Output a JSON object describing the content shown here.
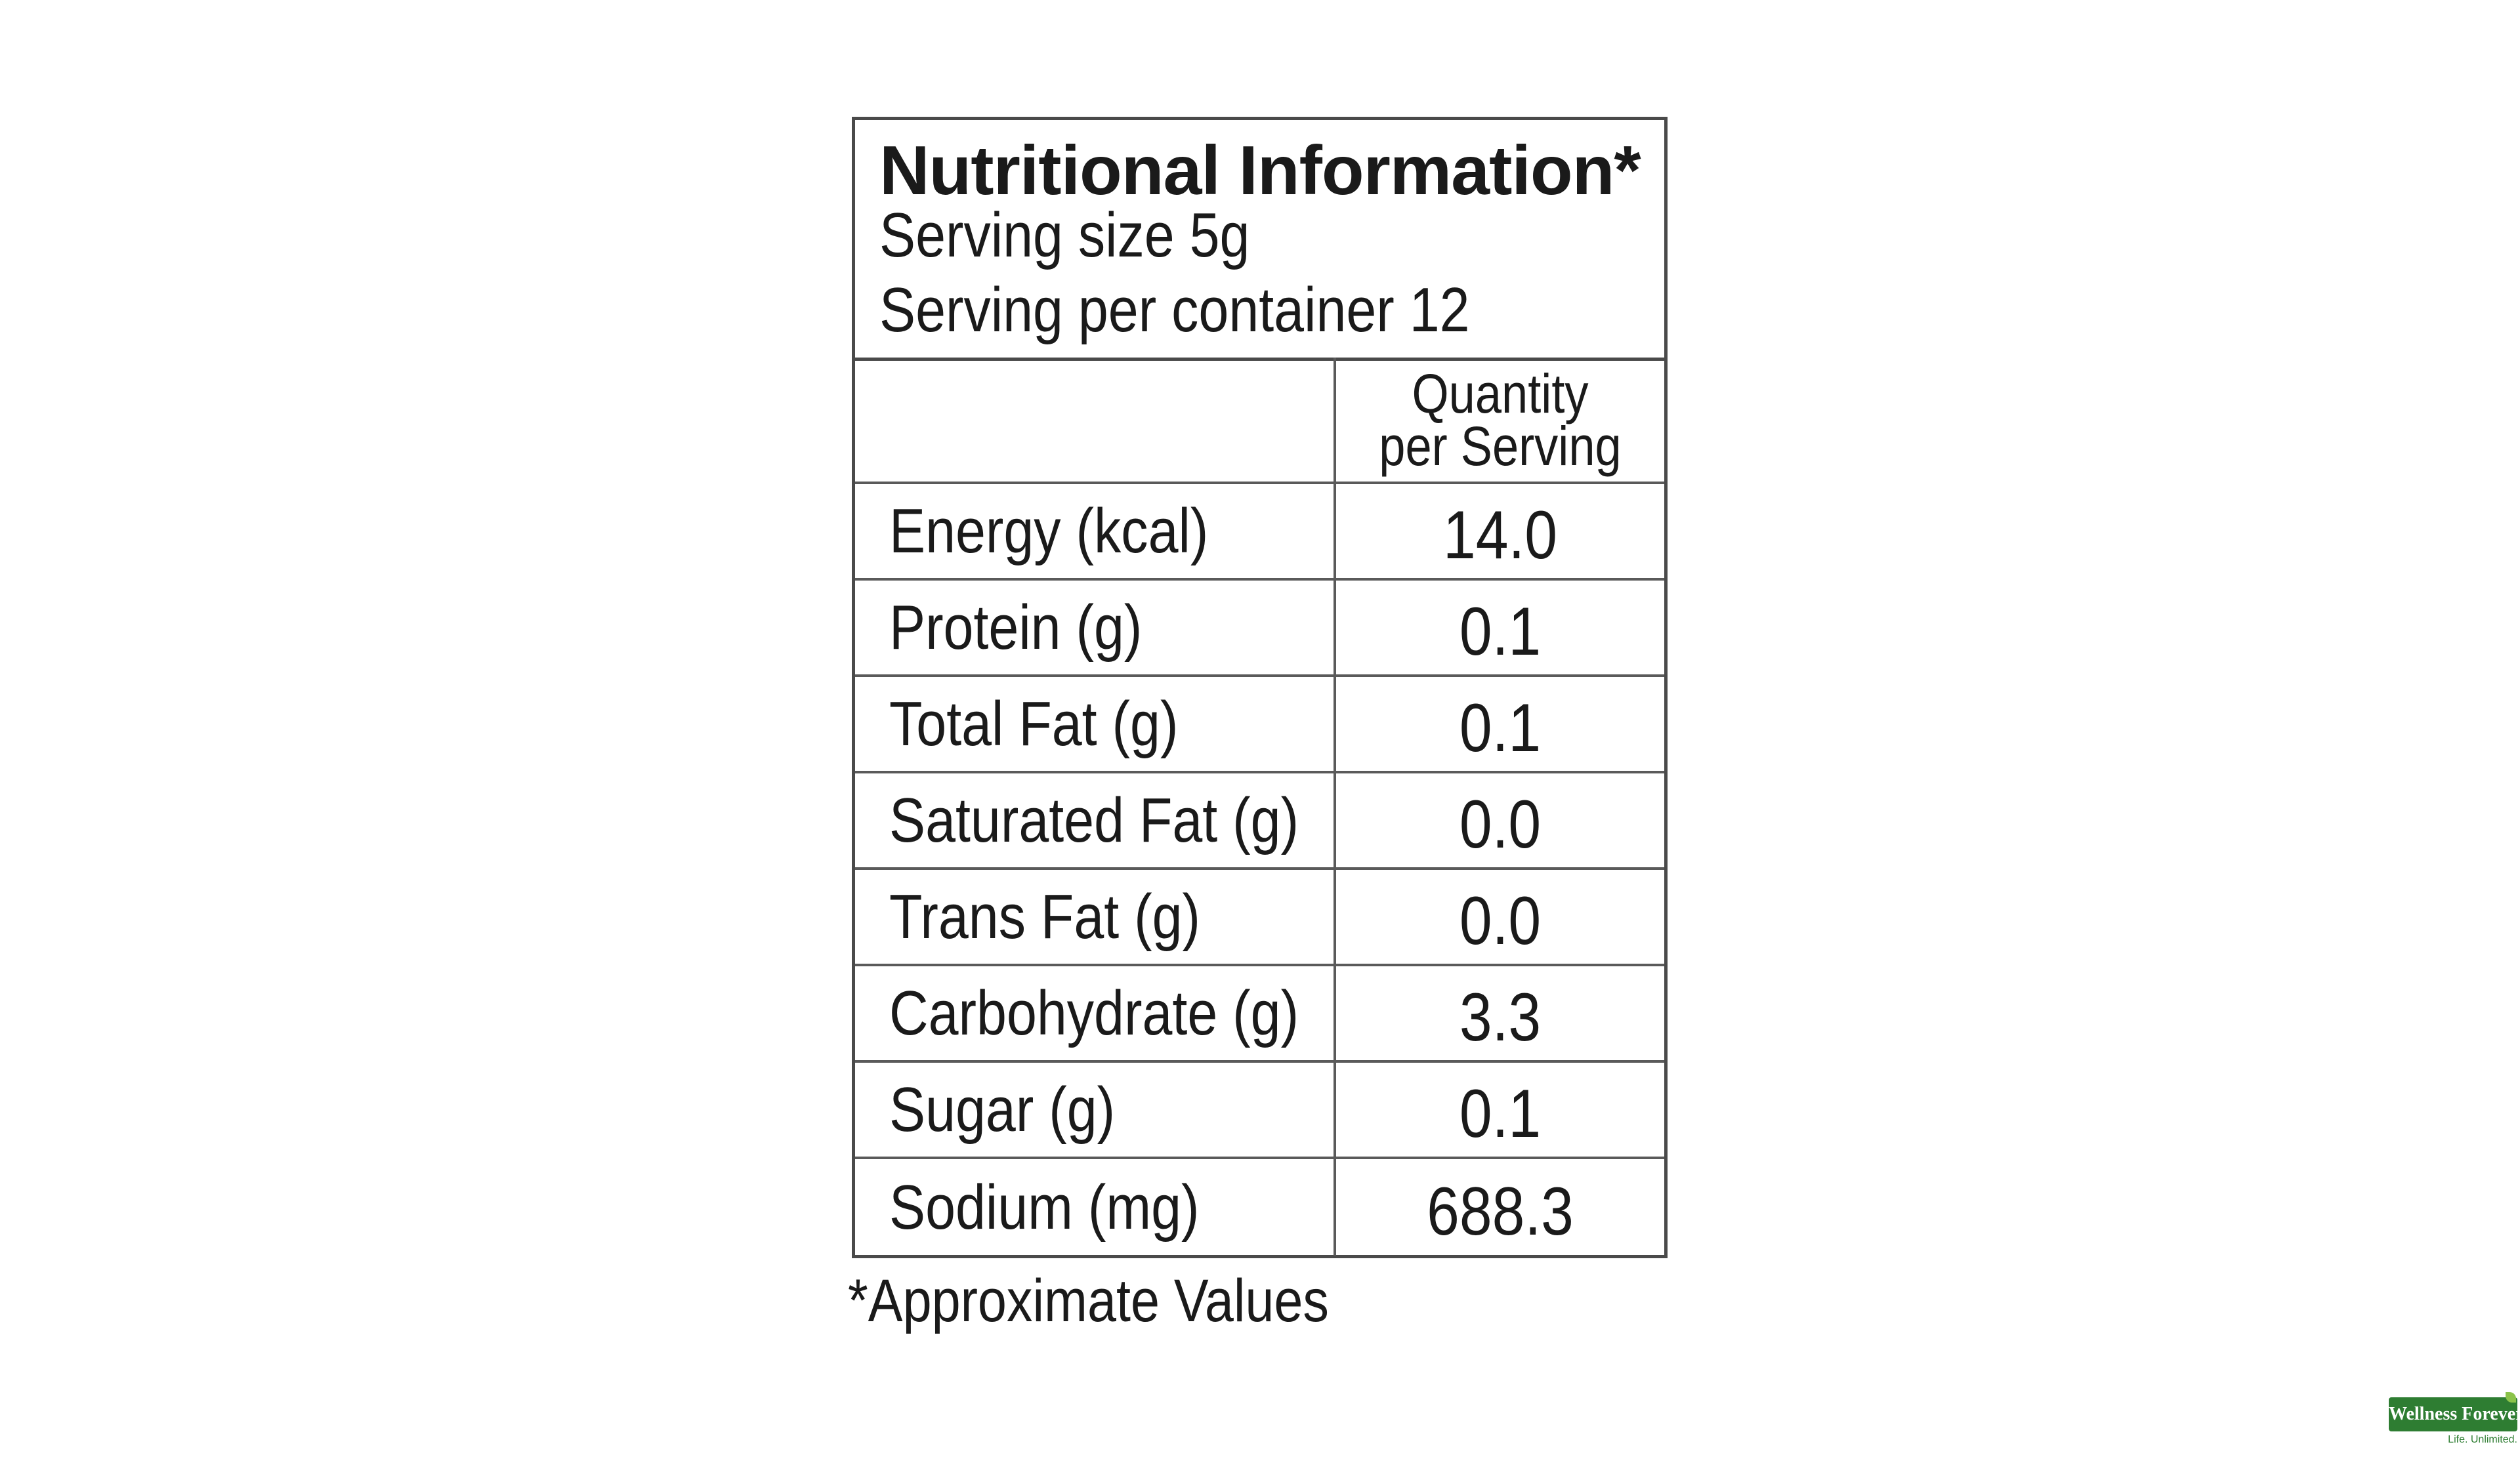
{
  "panel": {
    "title": "Nutritional Information*",
    "serving_size": "Serving size 5g",
    "serving_per_container": "Serving per container 12"
  },
  "table": {
    "column_header": [
      "Quantity",
      "per Serving"
    ],
    "rows": [
      {
        "label": "Energy (kcal)",
        "value": "14.0"
      },
      {
        "label": "Protein (g)",
        "value": "0.1"
      },
      {
        "label": "Total Fat (g)",
        "value": "0.1"
      },
      {
        "label": "Saturated Fat (g)",
        "value": "0.0"
      },
      {
        "label": "Trans Fat (g)",
        "value": "0.0"
      },
      {
        "label": "Carbohydrate (g)",
        "value": "3.3"
      },
      {
        "label": "Sugar (g)",
        "value": "0.1"
      },
      {
        "label": "Sodium (mg)",
        "value": "688.3"
      }
    ]
  },
  "footnote": "*Approximate Values",
  "logo": {
    "name": "Wellness Forever",
    "tagline": "Life. Unlimited."
  },
  "colors": {
    "border": "#4a4a4a",
    "text": "#1a1a1a",
    "logo_green": "#2e7d32"
  }
}
